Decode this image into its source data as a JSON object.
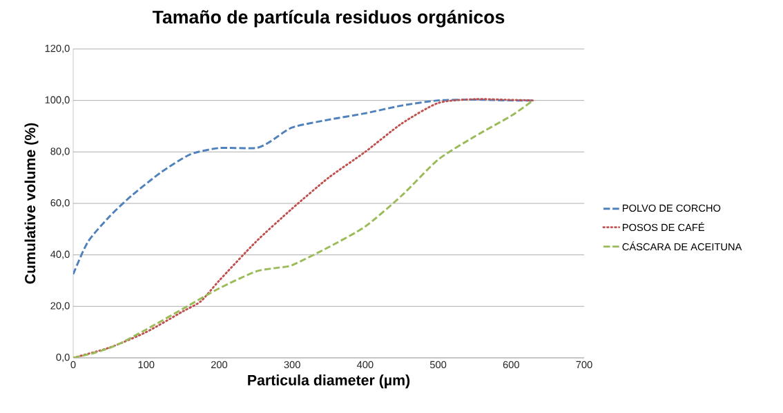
{
  "chart_data": {
    "type": "line",
    "title": "Tamaño de partícula residuos orgánicos",
    "xlabel": "Particula diameter (µm)",
    "ylabel": "Cumulative volume (%)",
    "xlim": [
      0,
      700
    ],
    "xticks": [
      0,
      100,
      200,
      300,
      400,
      500,
      600,
      700
    ],
    "ylim": [
      0,
      120
    ],
    "yticks": [
      {
        "value": 0,
        "label": "0,0"
      },
      {
        "value": 20,
        "label": "20,0"
      },
      {
        "value": 40,
        "label": "40,0"
      },
      {
        "value": 60,
        "label": "60,0"
      },
      {
        "value": 80,
        "label": "80,0"
      },
      {
        "value": 100,
        "label": "100,0"
      },
      {
        "value": 120,
        "label": "120,0"
      }
    ],
    "grid": "y",
    "legend": "right",
    "marker": "none",
    "series": [
      {
        "name": "POLVO DE CORCHO",
        "color": "#4f81bd",
        "line_style": "dashed",
        "x": [
          0,
          20,
          50,
          80,
          120,
          160,
          200,
          250,
          270,
          300,
          350,
          400,
          450,
          500,
          550,
          600,
          630
        ],
        "values": [
          32.5,
          45,
          55,
          63,
          72,
          79,
          81.5,
          81.5,
          84,
          89.5,
          92.5,
          95,
          98,
          100,
          100.3,
          100,
          100
        ]
      },
      {
        "name": "POSOS DE CAFÉ",
        "color": "#c0504d",
        "line_style": "dotted",
        "x": [
          0,
          50,
          100,
          150,
          175,
          200,
          250,
          300,
          350,
          400,
          450,
          500,
          550,
          600,
          630
        ],
        "values": [
          0,
          4,
          10,
          18,
          22,
          30,
          45,
          58,
          70,
          80,
          91,
          99,
          100.5,
          100.2,
          100
        ]
      },
      {
        "name": "CÁSCARA DE ACEITUNA",
        "color": "#9bbb59",
        "line_style": "dashed",
        "x": [
          0,
          30,
          60,
          100,
          150,
          200,
          250,
          280,
          300,
          350,
          400,
          450,
          500,
          550,
          600,
          630
        ],
        "values": [
          0,
          2,
          5,
          11,
          19,
          27,
          33.5,
          35,
          36,
          43,
          51,
          63,
          77,
          86,
          94,
          100
        ]
      }
    ]
  }
}
